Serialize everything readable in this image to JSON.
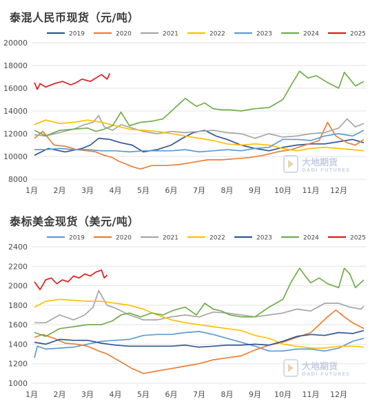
{
  "colors": {
    "2019": "#2f5597",
    "2020": "#ed7d31",
    "2021": "#a5a5a5",
    "2022": "#ffc000",
    "2023": "#5b9bd5",
    "2024": "#70ad47",
    "2025": "#e0191b"
  },
  "watermark": {
    "name": "大地期货",
    "sub": "DADI FUTURES"
  },
  "chart_data": [
    {
      "type": "line",
      "title": "泰混人民币现货（元/吨）",
      "x_ticks": [
        "1月",
        "2月",
        "3月",
        "4月",
        "5月",
        "6月",
        "7月",
        "8月",
        "9月",
        "10月",
        "11月",
        "12月"
      ],
      "ylim": [
        8000,
        20000
      ],
      "y_ticks": [
        8000,
        10000,
        12000,
        14000,
        16000,
        18000,
        20000
      ],
      "grid": true,
      "legend": "top",
      "series": [
        {
          "name": "2019",
          "color": "#2f5597",
          "x": [
            0.1,
            0.6,
            1.2,
            1.8,
            2.1,
            2.4,
            2.8,
            3.2,
            3.6,
            4.0,
            4.5,
            5.0,
            5.4,
            5.8,
            6.2,
            6.6,
            7.0,
            7.5,
            8.0,
            8.5,
            9.0,
            9.5,
            10.0,
            10.5,
            11.0,
            11.5,
            11.9
          ],
          "values": [
            10100,
            10700,
            10400,
            10700,
            11000,
            11600,
            11500,
            11200,
            11000,
            10400,
            10600,
            11000,
            11600,
            12100,
            12300,
            11800,
            11500,
            11000,
            10700,
            10500,
            10800,
            11000,
            11100,
            11100,
            11300,
            11500,
            11200
          ]
        },
        {
          "name": "2020",
          "color": "#ed7d31",
          "x": [
            0.1,
            0.4,
            0.8,
            1.2,
            1.6,
            2.0,
            2.3,
            2.6,
            2.9,
            3.1,
            3.3,
            3.6,
            3.9,
            4.3,
            4.8,
            5.3,
            5.8,
            6.3,
            6.8,
            7.3,
            7.8,
            8.3,
            8.8,
            9.3,
            9.8,
            10.3,
            10.6,
            10.9,
            11.3,
            11.6,
            11.9
          ],
          "values": [
            11600,
            12200,
            11000,
            10900,
            10600,
            10500,
            10400,
            10100,
            9900,
            9600,
            9400,
            9100,
            8900,
            9200,
            9200,
            9300,
            9500,
            9700,
            9700,
            9800,
            9900,
            10100,
            10400,
            10600,
            11000,
            11400,
            13000,
            11800,
            11200,
            11000,
            11500
          ]
        },
        {
          "name": "2021",
          "color": "#a5a5a5",
          "x": [
            0.1,
            0.5,
            1.0,
            1.5,
            1.9,
            2.2,
            2.4,
            2.6,
            2.9,
            3.2,
            3.6,
            4.0,
            4.5,
            5.0,
            5.5,
            6.0,
            6.5,
            7.0,
            7.5,
            8.0,
            8.5,
            9.0,
            9.5,
            10.0,
            10.5,
            11.0,
            11.3,
            11.6,
            11.9
          ],
          "values": [
            11900,
            11800,
            12100,
            12400,
            12800,
            13000,
            13600,
            12600,
            12300,
            12800,
            12500,
            12200,
            12000,
            12200,
            12100,
            12200,
            12300,
            12100,
            12000,
            11600,
            12000,
            11700,
            11800,
            12000,
            12100,
            12500,
            13300,
            12600,
            12900
          ]
        },
        {
          "name": "2022",
          "color": "#ffc000",
          "x": [
            0.1,
            0.5,
            1.0,
            1.5,
            2.0,
            2.5,
            3.0,
            3.5,
            4.0,
            4.5,
            5.0,
            5.5,
            6.0,
            6.5,
            7.0,
            7.5,
            8.0,
            8.5,
            9.0,
            9.5,
            10.0,
            10.5,
            11.0,
            11.5,
            11.9
          ],
          "values": [
            12800,
            13200,
            12900,
            13000,
            13200,
            13000,
            12700,
            12400,
            12300,
            12200,
            12000,
            11800,
            11600,
            11400,
            11100,
            11000,
            11100,
            11000,
            10700,
            10500,
            10700,
            10800,
            10700,
            10600,
            10500
          ]
        },
        {
          "name": "2023",
          "color": "#5b9bd5",
          "x": [
            0.1,
            0.5,
            1.0,
            1.5,
            2.0,
            2.5,
            3.0,
            3.5,
            4.0,
            4.5,
            5.0,
            5.5,
            6.0,
            6.5,
            7.0,
            7.5,
            8.0,
            8.5,
            9.0,
            9.5,
            10.0,
            10.5,
            11.0,
            11.5,
            11.9
          ],
          "values": [
            10600,
            10600,
            10700,
            10600,
            10600,
            10500,
            10500,
            10400,
            10500,
            10500,
            10500,
            10600,
            10400,
            10500,
            10600,
            10500,
            10700,
            10800,
            11500,
            11500,
            11400,
            11800,
            12000,
            11800,
            12300
          ]
        },
        {
          "name": "2024",
          "color": "#70ad47",
          "x": [
            0.1,
            0.5,
            1.0,
            1.5,
            2.0,
            2.3,
            2.6,
            2.9,
            3.2,
            3.5,
            3.9,
            4.3,
            4.7,
            5.1,
            5.5,
            5.9,
            6.2,
            6.5,
            6.8,
            7.1,
            7.5,
            8.0,
            8.5,
            9.0,
            9.3,
            9.6,
            9.9,
            10.2,
            10.6,
            11.0,
            11.2,
            11.4,
            11.6,
            11.9
          ],
          "values": [
            12300,
            11800,
            12300,
            12400,
            12500,
            12200,
            12400,
            12700,
            13900,
            12700,
            13000,
            13100,
            13300,
            14200,
            15100,
            14400,
            14700,
            14200,
            14100,
            14100,
            14000,
            14200,
            14300,
            15000,
            16300,
            17500,
            16900,
            17100,
            16500,
            16000,
            17400,
            16800,
            16200,
            16600
          ]
        },
        {
          "name": "2025",
          "color": "#e0191b",
          "x": [
            0.1,
            0.2,
            0.3,
            0.5,
            0.8,
            1.1,
            1.4,
            1.6,
            1.8,
            2.1,
            2.3,
            2.5,
            2.7,
            2.8
          ],
          "values": [
            16500,
            15900,
            16400,
            16100,
            16400,
            16600,
            16300,
            16500,
            16800,
            16600,
            16900,
            17200,
            16800,
            17300
          ]
        }
      ]
    },
    {
      "type": "line",
      "title": "泰标美金现货（美元/吨）",
      "x_ticks": [
        "1月",
        "2月",
        "3月",
        "4月",
        "5月",
        "6月",
        "7月",
        "8月",
        "9月",
        "10月",
        "11月",
        "12月"
      ],
      "ylim": [
        1000,
        2400
      ],
      "y_ticks": [
        1000,
        1200,
        1400,
        1600,
        1800,
        2000,
        2200,
        2400
      ],
      "grid": true,
      "legend": "top",
      "series": [
        {
          "name": "2019",
          "color": "#5b9bd5",
          "x": [
            0.1,
            0.2,
            0.5,
            1.0,
            1.5,
            2.0,
            2.5,
            3.0,
            3.5,
            4.0,
            4.5,
            5.0,
            5.5,
            6.0,
            6.5,
            7.0,
            7.5,
            8.0,
            8.5,
            9.0,
            9.5,
            10.0,
            10.5,
            11.0,
            11.5,
            11.9
          ],
          "values": [
            1260,
            1380,
            1350,
            1360,
            1370,
            1400,
            1430,
            1440,
            1450,
            1490,
            1500,
            1500,
            1520,
            1530,
            1500,
            1460,
            1420,
            1380,
            1330,
            1330,
            1350,
            1350,
            1330,
            1360,
            1430,
            1460
          ]
        },
        {
          "name": "2020",
          "color": "#ed7d31",
          "x": [
            0.1,
            0.4,
            0.8,
            1.2,
            1.6,
            2.0,
            2.4,
            2.7,
            3.0,
            3.3,
            3.6,
            4.0,
            4.4,
            4.8,
            5.2,
            5.6,
            6.0,
            6.5,
            7.0,
            7.5,
            8.0,
            8.5,
            9.0,
            9.5,
            10.0,
            10.3,
            10.6,
            10.9,
            11.2,
            11.5,
            11.9
          ],
          "values": [
            1470,
            1500,
            1460,
            1410,
            1400,
            1380,
            1330,
            1300,
            1250,
            1200,
            1150,
            1100,
            1120,
            1140,
            1160,
            1180,
            1200,
            1240,
            1260,
            1280,
            1340,
            1390,
            1420,
            1470,
            1520,
            1600,
            1680,
            1750,
            1680,
            1620,
            1560
          ]
        },
        {
          "name": "2021",
          "color": "#a5a5a5",
          "x": [
            0.1,
            0.5,
            1.0,
            1.5,
            1.9,
            2.2,
            2.4,
            2.7,
            3.0,
            3.5,
            4.0,
            4.5,
            5.0,
            5.5,
            6.0,
            6.5,
            7.0,
            7.5,
            8.0,
            8.5,
            9.0,
            9.5,
            10.0,
            10.5,
            11.0,
            11.4,
            11.8,
            11.9
          ],
          "values": [
            1620,
            1620,
            1700,
            1650,
            1700,
            1780,
            1950,
            1800,
            1770,
            1700,
            1650,
            1650,
            1680,
            1700,
            1680,
            1730,
            1720,
            1700,
            1680,
            1700,
            1720,
            1760,
            1740,
            1820,
            1820,
            1780,
            1760,
            1790
          ]
        },
        {
          "name": "2022",
          "color": "#ffc000",
          "x": [
            0.1,
            0.5,
            1.0,
            1.5,
            2.0,
            2.5,
            3.0,
            3.5,
            4.0,
            4.5,
            5.0,
            5.5,
            6.0,
            6.5,
            7.0,
            7.5,
            8.0,
            8.5,
            9.0,
            9.5,
            10.0,
            10.5,
            11.0,
            11.5,
            11.9
          ],
          "values": [
            1780,
            1840,
            1860,
            1850,
            1840,
            1840,
            1820,
            1800,
            1760,
            1700,
            1650,
            1620,
            1600,
            1580,
            1560,
            1540,
            1490,
            1460,
            1400,
            1380,
            1360,
            1360,
            1380,
            1380,
            1370
          ]
        },
        {
          "name": "2023",
          "color": "#2f5597",
          "x": [
            0.1,
            0.5,
            1.0,
            1.5,
            2.0,
            2.5,
            3.0,
            3.5,
            4.0,
            4.5,
            5.0,
            5.5,
            6.0,
            6.5,
            7.0,
            7.5,
            8.0,
            8.5,
            9.0,
            9.5,
            10.0,
            10.5,
            11.0,
            11.5,
            11.9
          ],
          "values": [
            1420,
            1400,
            1450,
            1440,
            1440,
            1410,
            1390,
            1380,
            1380,
            1380,
            1380,
            1390,
            1370,
            1380,
            1390,
            1390,
            1400,
            1390,
            1430,
            1480,
            1500,
            1490,
            1520,
            1510,
            1540
          ]
        },
        {
          "name": "2024",
          "color": "#70ad47",
          "x": [
            0.1,
            0.5,
            1.0,
            1.5,
            2.0,
            2.5,
            2.9,
            3.2,
            3.5,
            3.9,
            4.3,
            4.7,
            5.1,
            5.5,
            5.9,
            6.2,
            6.5,
            6.8,
            7.1,
            7.5,
            8.0,
            8.5,
            9.0,
            9.3,
            9.6,
            9.8,
            10.0,
            10.3,
            10.6,
            11.0,
            11.2,
            11.4,
            11.6,
            11.9
          ],
          "values": [
            1520,
            1480,
            1560,
            1580,
            1600,
            1600,
            1640,
            1700,
            1720,
            1680,
            1720,
            1700,
            1750,
            1780,
            1700,
            1820,
            1760,
            1740,
            1700,
            1680,
            1680,
            1780,
            1860,
            2040,
            2180,
            2100,
            2030,
            2080,
            2020,
            1980,
            2180,
            2120,
            1980,
            2060
          ]
        },
        {
          "name": "2025",
          "color": "#e0191b",
          "x": [
            0.1,
            0.3,
            0.5,
            0.7,
            0.9,
            1.1,
            1.3,
            1.5,
            1.7,
            1.9,
            2.1,
            2.3,
            2.5,
            2.6,
            2.7
          ],
          "values": [
            2040,
            1960,
            2060,
            2080,
            2020,
            2060,
            2040,
            2100,
            2080,
            2120,
            2100,
            2140,
            2160,
            2080,
            2110
          ]
        }
      ]
    }
  ]
}
